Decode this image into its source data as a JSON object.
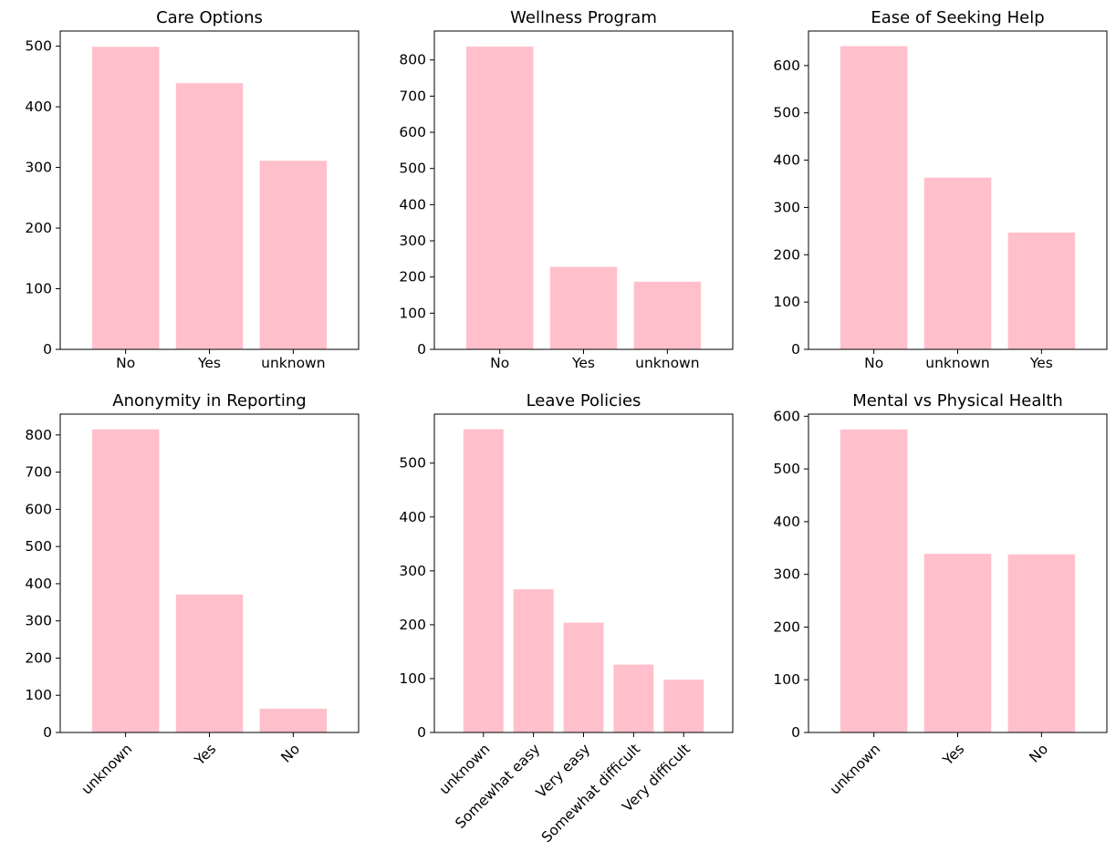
{
  "colors": {
    "bar": "#ffc0cb",
    "axis": "#000000",
    "background": "#ffffff"
  },
  "chart_data": [
    {
      "type": "bar",
      "title": "Care Options",
      "categories": [
        "No",
        "Yes",
        "unknown"
      ],
      "values": [
        499,
        439,
        311
      ],
      "ylim": [
        0,
        525
      ],
      "yticks": [
        0,
        100,
        200,
        300,
        400,
        500
      ],
      "xtick_rotation": 0,
      "grid": false
    },
    {
      "type": "bar",
      "title": "Wellness Program",
      "categories": [
        "No",
        "Yes",
        "unknown"
      ],
      "values": [
        837,
        228,
        187
      ],
      "ylim": [
        0,
        880
      ],
      "yticks": [
        0,
        100,
        200,
        300,
        400,
        500,
        600,
        700,
        800
      ],
      "xtick_rotation": 0,
      "grid": false
    },
    {
      "type": "bar",
      "title": "Ease of Seeking Help",
      "categories": [
        "No",
        "unknown",
        "Yes"
      ],
      "values": [
        641,
        363,
        247
      ],
      "ylim": [
        0,
        673
      ],
      "yticks": [
        0,
        100,
        200,
        300,
        400,
        500,
        600
      ],
      "xtick_rotation": 0,
      "grid": false
    },
    {
      "type": "bar",
      "title": "Anonymity in Reporting",
      "categories": [
        "unknown",
        "Yes",
        "No"
      ],
      "values": [
        815,
        371,
        64
      ],
      "ylim": [
        0,
        856
      ],
      "yticks": [
        0,
        100,
        200,
        300,
        400,
        500,
        600,
        700,
        800
      ],
      "xtick_rotation": -45,
      "grid": false
    },
    {
      "type": "bar",
      "title": "Leave Policies",
      "categories": [
        "unknown",
        "Somewhat easy",
        "Very easy",
        "Somewhat difficult",
        "Very difficult"
      ],
      "values": [
        563,
        266,
        204,
        126,
        98
      ],
      "ylim": [
        0,
        591
      ],
      "yticks": [
        0,
        100,
        200,
        300,
        400,
        500
      ],
      "xtick_rotation": -45,
      "grid": false
    },
    {
      "type": "bar",
      "title": "Mental vs Physical Health",
      "categories": [
        "unknown",
        "Yes",
        "No"
      ],
      "values": [
        575,
        339,
        338
      ],
      "ylim": [
        0,
        604
      ],
      "yticks": [
        0,
        100,
        200,
        300,
        400,
        500,
        600
      ],
      "xtick_rotation": -45,
      "grid": false
    }
  ]
}
